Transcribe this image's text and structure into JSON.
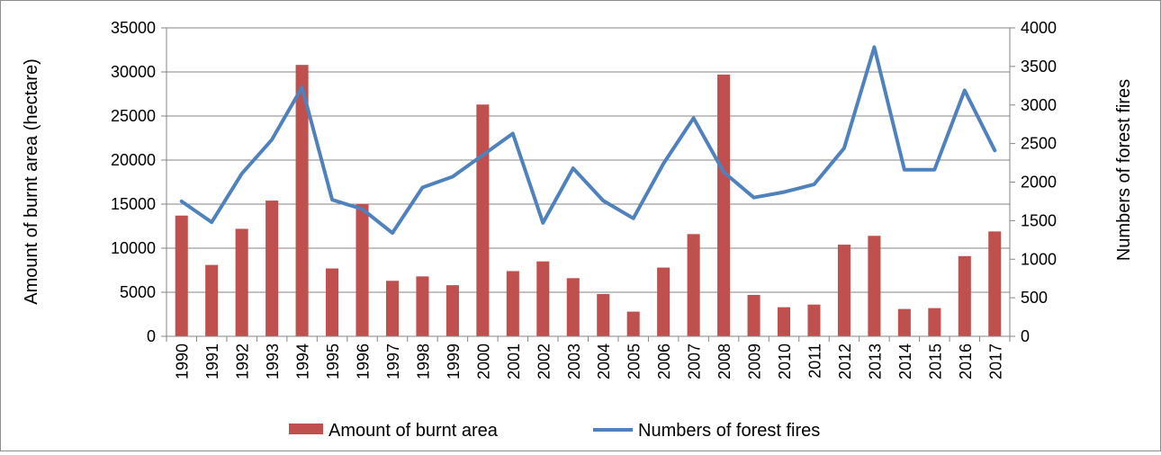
{
  "chart_data": {
    "type": "bar+line",
    "categories": [
      "1990",
      "1991",
      "1992",
      "1993",
      "1994",
      "1995",
      "1996",
      "1997",
      "1998",
      "1999",
      "2000",
      "2001",
      "2002",
      "2003",
      "2004",
      "2005",
      "2006",
      "2007",
      "2008",
      "2009",
      "2010",
      "2011",
      "2012",
      "2013",
      "2014",
      "2015",
      "2016",
      "2017"
    ],
    "series": [
      {
        "name": "Amount of burnt area",
        "type": "bar",
        "axis": "left",
        "color": "#c0504d",
        "values": [
          13700,
          8100,
          12200,
          15400,
          30800,
          7700,
          15000,
          6300,
          6800,
          5800,
          26300,
          7400,
          8500,
          6600,
          4800,
          2800,
          7800,
          11600,
          29700,
          4700,
          3300,
          3600,
          10400,
          11400,
          3100,
          3200,
          9100,
          11900
        ]
      },
      {
        "name": "Numbers of forest fires",
        "type": "line",
        "axis": "right",
        "color": "#4f81bd",
        "values": [
          1750,
          1480,
          2110,
          2550,
          3230,
          1770,
          1650,
          1340,
          1930,
          2070,
          2350,
          2630,
          1470,
          2180,
          1760,
          1530,
          2240,
          2830,
          2130,
          1800,
          1870,
          1970,
          2440,
          3750,
          2160,
          2160,
          3190,
          2410
        ]
      }
    ],
    "ylabel": "Amount  of  burnt  area (hectare)",
    "y2label": "Numbers  of  forest  fires",
    "ylim": [
      0,
      35000
    ],
    "y2lim": [
      0,
      4000
    ],
    "yticks": [
      "0",
      "5000",
      "10000",
      "15000",
      "20000",
      "25000",
      "30000",
      "35000"
    ],
    "y2ticks": [
      "0",
      "500",
      "1000",
      "1500",
      "2000",
      "2500",
      "3000",
      "3500",
      "4000"
    ],
    "grid": true,
    "legend_position": "bottom",
    "legend": [
      "Amount of burnt area",
      "Numbers of forest fires"
    ]
  }
}
